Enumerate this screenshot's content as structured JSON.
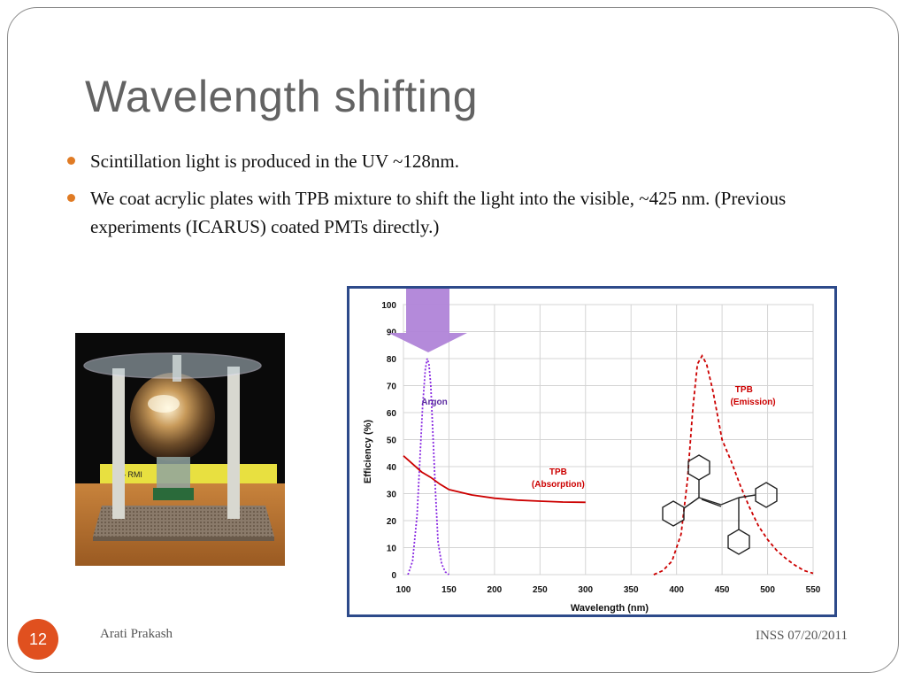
{
  "slide": {
    "title": "Wavelength shifting",
    "bullets": [
      "Scintillation light is produced in the UV ~128nm.",
      "We coat acrylic plates with TPB mixture to shift the light into the visible, ~425 nm. (Previous experiments (ICARUS) coated PMTs directly.)"
    ],
    "author": "Arati Prakash",
    "event_date": "INSS 07/20/2011",
    "page_number": "12"
  },
  "colors": {
    "accent": "#e07b24",
    "page_badge": "#e0501f",
    "chart_border": "#2d4a8a",
    "argon": "#8a2be2",
    "tpb": "#cc0000",
    "arrow": "#b084d8"
  },
  "chart_data": {
    "type": "line",
    "title": "",
    "xlabel": "Wavelength (nm)",
    "ylabel": "Efficiency (%)",
    "xlim": [
      100,
      550
    ],
    "ylim": [
      0,
      100
    ],
    "xticks": [
      100,
      150,
      200,
      250,
      300,
      350,
      400,
      450,
      500,
      550
    ],
    "yticks": [
      0,
      10,
      20,
      30,
      40,
      50,
      60,
      70,
      80,
      90,
      100
    ],
    "grid": true,
    "series": [
      {
        "name": "Argon",
        "style": "dotted",
        "color": "#8a2be2",
        "x": [
          105,
          110,
          115,
          118,
          121,
          124,
          126,
          128,
          130,
          132,
          135,
          138,
          142,
          146,
          150
        ],
        "y": [
          0,
          5,
          22,
          42,
          62,
          76,
          80,
          78,
          70,
          55,
          32,
          12,
          4,
          1,
          0
        ]
      },
      {
        "name": "TPB\n(Absorption)",
        "style": "solid",
        "color": "#cc0000",
        "x": [
          100,
          110,
          120,
          130,
          140,
          150,
          175,
          200,
          225,
          250,
          275,
          300
        ],
        "y": [
          44,
          41,
          38,
          36,
          33.5,
          31.5,
          29.5,
          28.3,
          27.6,
          27.2,
          26.9,
          26.8
        ]
      },
      {
        "name": "TPB\n(Emission)",
        "style": "dashed",
        "color": "#cc0000",
        "x": [
          375,
          385,
          395,
          405,
          412,
          418,
          423,
          428,
          433,
          440,
          450,
          460,
          470,
          480,
          490,
          500,
          510,
          520,
          530,
          540,
          550
        ],
        "y": [
          0,
          1.5,
          5,
          15,
          35,
          62,
          78,
          81,
          78,
          68,
          50,
          42,
          33,
          25,
          18,
          13,
          9,
          6,
          3.5,
          1.5,
          0.5
        ]
      }
    ],
    "annotations": [
      {
        "label": "Argon",
        "x": 134,
        "y": 63
      },
      {
        "label": "TPB",
        "x": 270,
        "y": 37
      },
      {
        "label": "(Absorption)",
        "x": 270,
        "y": 32.5
      },
      {
        "label": "TPB",
        "x": 474,
        "y": 67.5
      },
      {
        "label": "(Emission)",
        "x": 484,
        "y": 63
      }
    ]
  }
}
